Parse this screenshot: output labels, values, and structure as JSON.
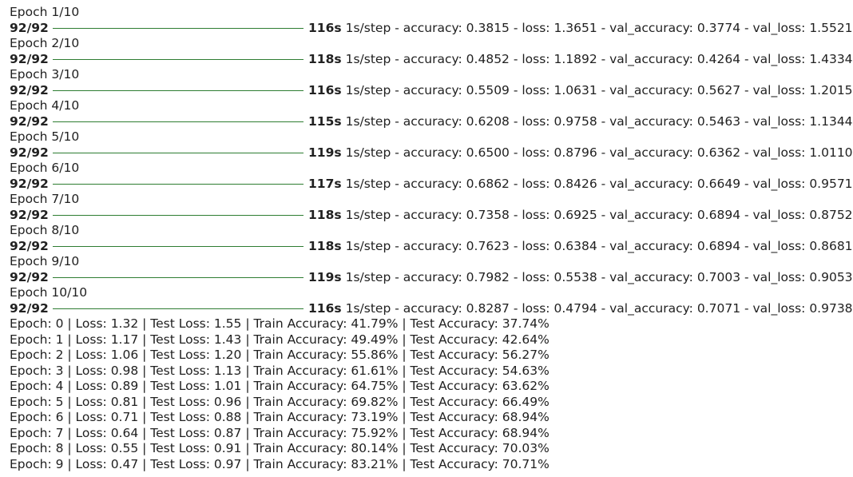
{
  "epochs": [
    {
      "header": "Epoch 1/10",
      "steps": "92/92",
      "time": "116s",
      "metrics": "1s/step - accuracy: 0.3815 - loss: 1.3651 - val_accuracy: 0.3774 - val_loss: 1.5521",
      "progress": 1.0
    },
    {
      "header": "Epoch 2/10",
      "steps": "92/92",
      "time": "118s",
      "metrics": "1s/step - accuracy: 0.4852 - loss: 1.1892 - val_accuracy: 0.4264 - val_loss: 1.4334",
      "progress": 1.0
    },
    {
      "header": "Epoch 3/10",
      "steps": "92/92",
      "time": "116s",
      "metrics": "1s/step - accuracy: 0.5509 - loss: 1.0631 - val_accuracy: 0.5627 - val_loss: 1.2015",
      "progress": 1.0
    },
    {
      "header": "Epoch 4/10",
      "steps": "92/92",
      "time": "115s",
      "metrics": "1s/step - accuracy: 0.6208 - loss: 0.9758 - val_accuracy: 0.5463 - val_loss: 1.1344",
      "progress": 1.0
    },
    {
      "header": "Epoch 5/10",
      "steps": "92/92",
      "time": "119s",
      "metrics": "1s/step - accuracy: 0.6500 - loss: 0.8796 - val_accuracy: 0.6362 - val_loss: 1.0110",
      "progress": 1.0
    },
    {
      "header": "Epoch 6/10",
      "steps": "92/92",
      "time": "117s",
      "metrics": "1s/step - accuracy: 0.6862 - loss: 0.8426 - val_accuracy: 0.6649 - val_loss: 0.9571",
      "progress": 1.0
    },
    {
      "header": "Epoch 7/10",
      "steps": "92/92",
      "time": "118s",
      "metrics": "1s/step - accuracy: 0.7358 - loss: 0.6925 - val_accuracy: 0.6894 - val_loss: 0.8752",
      "progress": 1.0
    },
    {
      "header": "Epoch 8/10",
      "steps": "92/92",
      "time": "118s",
      "metrics": "1s/step - accuracy: 0.7623 - loss: 0.6384 - val_accuracy: 0.6894 - val_loss: 0.8681",
      "progress": 1.0
    },
    {
      "header": "Epoch 9/10",
      "steps": "92/92",
      "time": "119s",
      "metrics": "1s/step - accuracy: 0.7982 - loss: 0.5538 - val_accuracy: 0.7003 - val_loss: 0.9053",
      "progress": 1.0
    },
    {
      "header": "Epoch 10/10",
      "steps": "92/92",
      "time": "116s",
      "metrics": "1s/step - accuracy: 0.8287 - loss: 0.4794 - val_accuracy: 0.7071 - val_loss: 0.9738",
      "progress": 1.0
    }
  ],
  "summary": [
    "Epoch: 0 | Loss: 1.32 | Test Loss: 1.55 | Train Accuracy: 41.79% | Test Accuracy: 37.74%",
    "Epoch: 1 | Loss: 1.17 | Test Loss: 1.43 | Train Accuracy: 49.49% | Test Accuracy: 42.64%",
    "Epoch: 2 | Loss: 1.06 | Test Loss: 1.20 | Train Accuracy: 55.86% | Test Accuracy: 56.27%",
    "Epoch: 3 | Loss: 0.98 | Test Loss: 1.13 | Train Accuracy: 61.61% | Test Accuracy: 54.63%",
    "Epoch: 4 | Loss: 0.89 | Test Loss: 1.01 | Train Accuracy: 64.75% | Test Accuracy: 63.62%",
    "Epoch: 5 | Loss: 0.81 | Test Loss: 0.96 | Train Accuracy: 69.82% | Test Accuracy: 66.49%",
    "Epoch: 6 | Loss: 0.71 | Test Loss: 0.88 | Train Accuracy: 73.19% | Test Accuracy: 68.94%",
    "Epoch: 7 | Loss: 0.64 | Test Loss: 0.87 | Train Accuracy: 75.92% | Test Accuracy: 68.94%",
    "Epoch: 8 | Loss: 0.55 | Test Loss: 0.91 | Train Accuracy: 80.14% | Test Accuracy: 70.03%",
    "Epoch: 9 | Loss: 0.47 | Test Loss: 0.97 | Train Accuracy: 83.21% | Test Accuracy: 70.71%"
  ],
  "colors": {
    "progress_bar": "#2e7d32",
    "text": "#212121",
    "background": "#ffffff"
  }
}
